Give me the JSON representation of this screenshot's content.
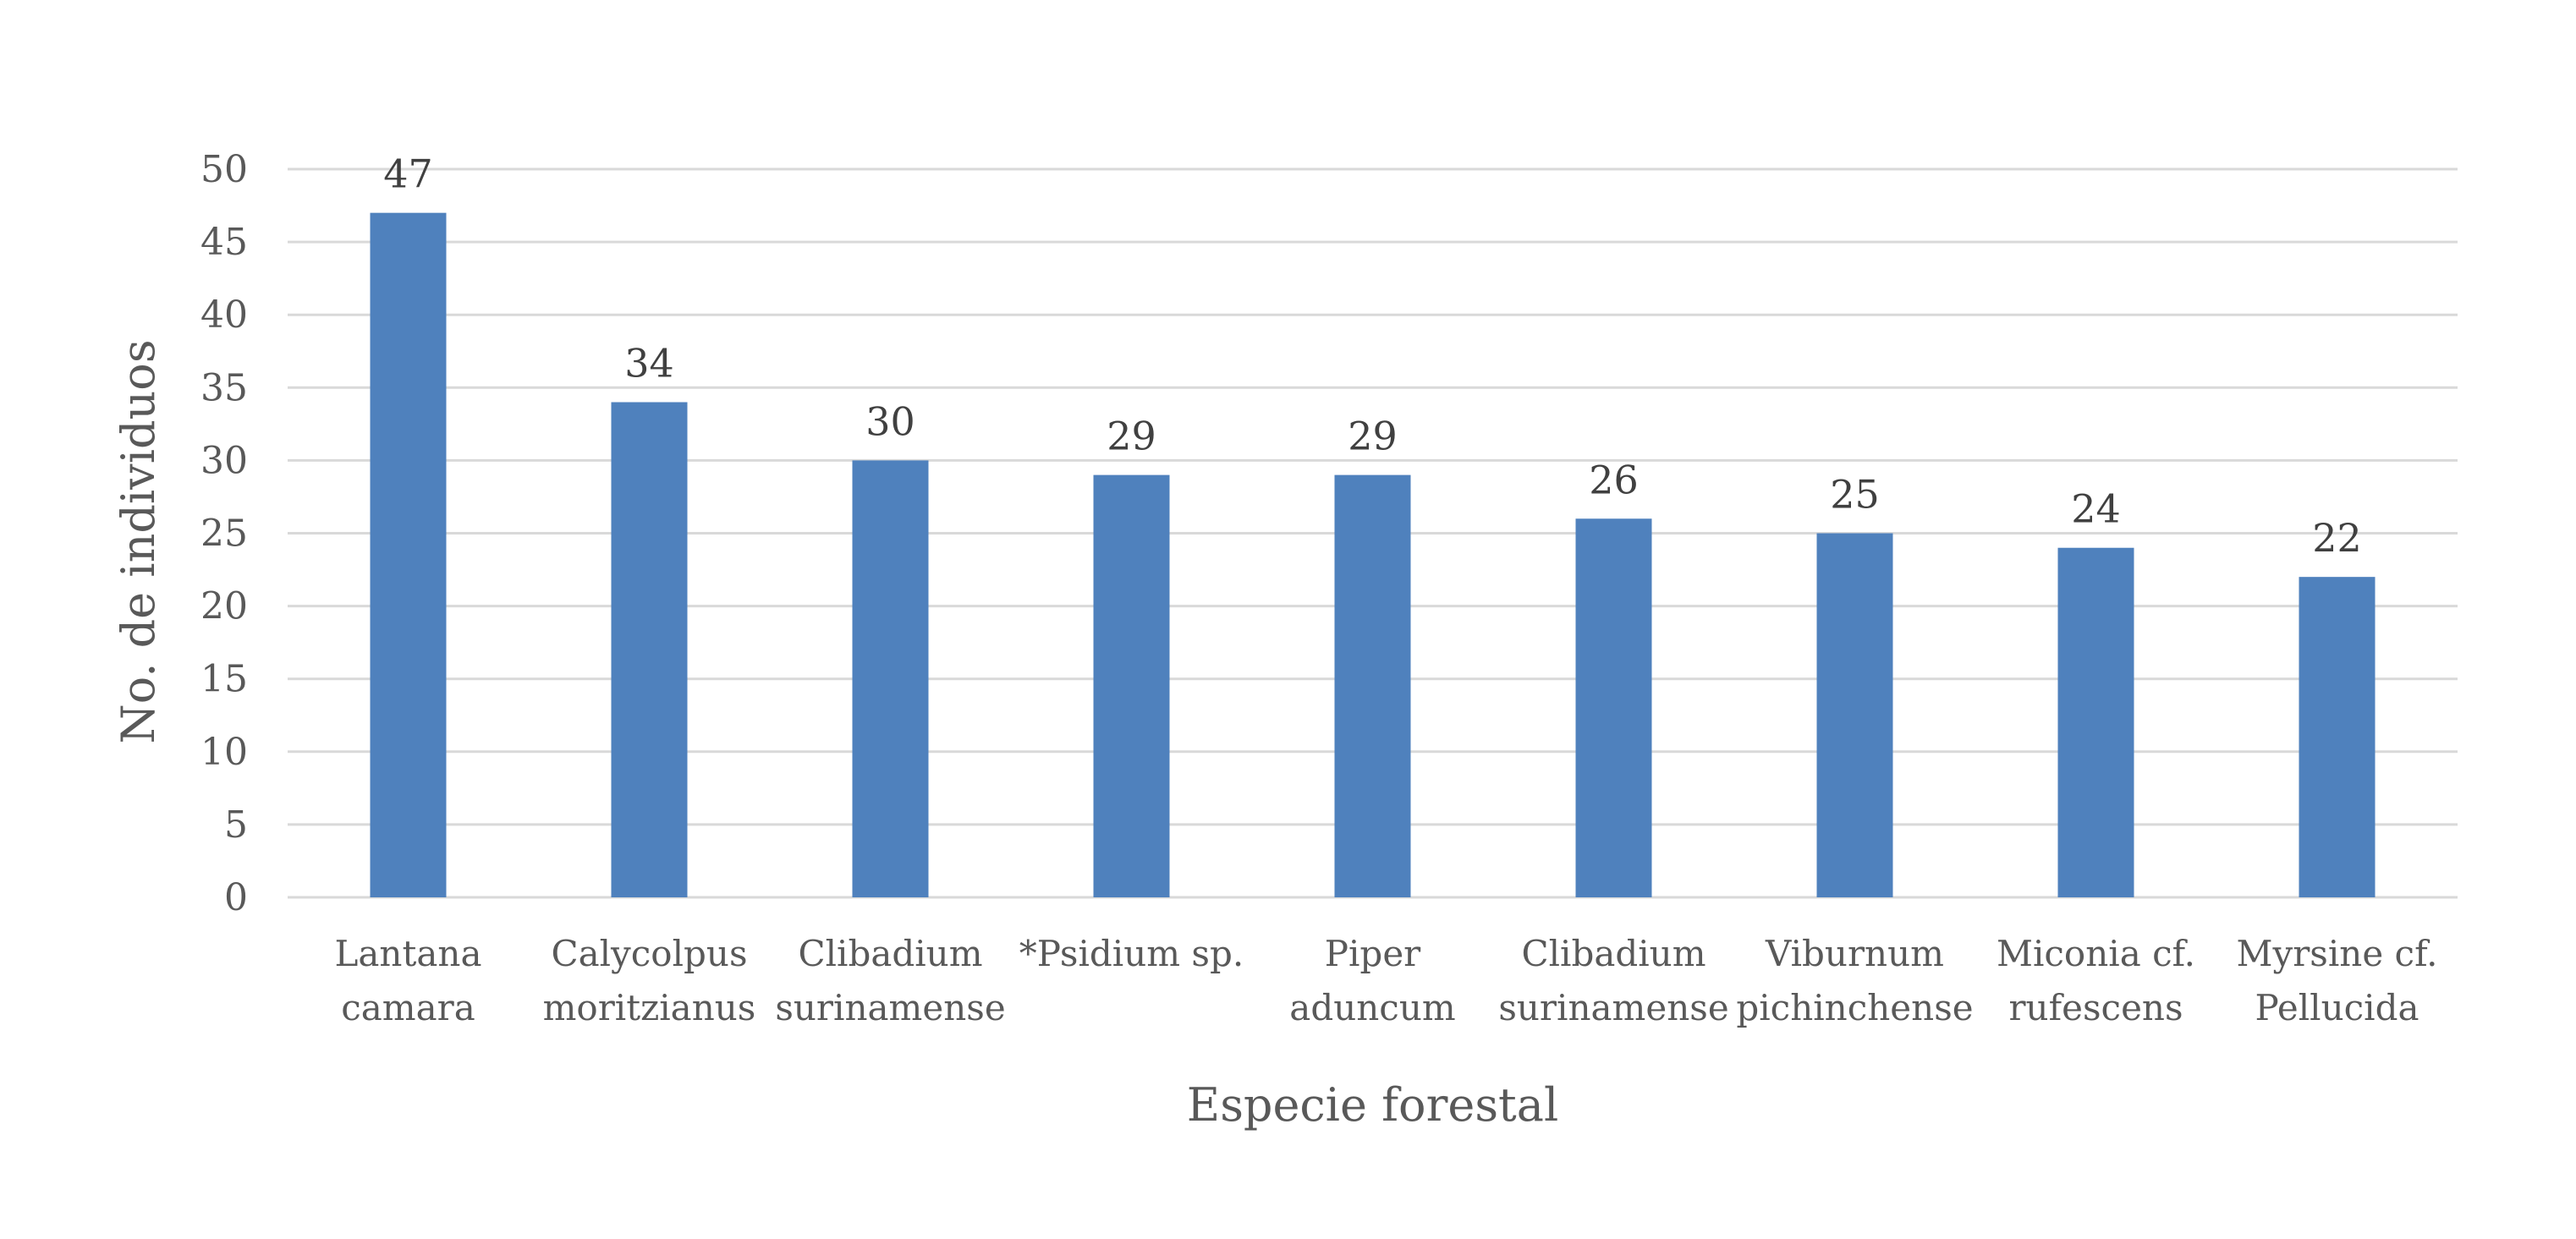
{
  "chart_data": {
    "type": "bar",
    "title": "",
    "xlabel": "Especie forestal",
    "ylabel": "No. de individuos",
    "ylim": [
      0,
      50
    ],
    "yticks": [
      0,
      5,
      10,
      15,
      20,
      25,
      30,
      35,
      40,
      45,
      50
    ],
    "grid": true,
    "legend": "none",
    "bar_color": "#4f81bd",
    "categories": [
      [
        "Lantana",
        "camara"
      ],
      [
        "Calycolpus",
        "moritzianus"
      ],
      [
        "Clibadium",
        "surinamense"
      ],
      [
        "*Psidium sp."
      ],
      [
        "Piper",
        "aduncum"
      ],
      [
        "Clibadium",
        "surinamense"
      ],
      [
        "Viburnum",
        "pichinchense"
      ],
      [
        "Miconia cf.",
        "rufescens"
      ],
      [
        "Myrsine cf.",
        "Pellucida"
      ]
    ],
    "values": [
      47,
      34,
      30,
      29,
      29,
      26,
      25,
      24,
      22
    ]
  }
}
